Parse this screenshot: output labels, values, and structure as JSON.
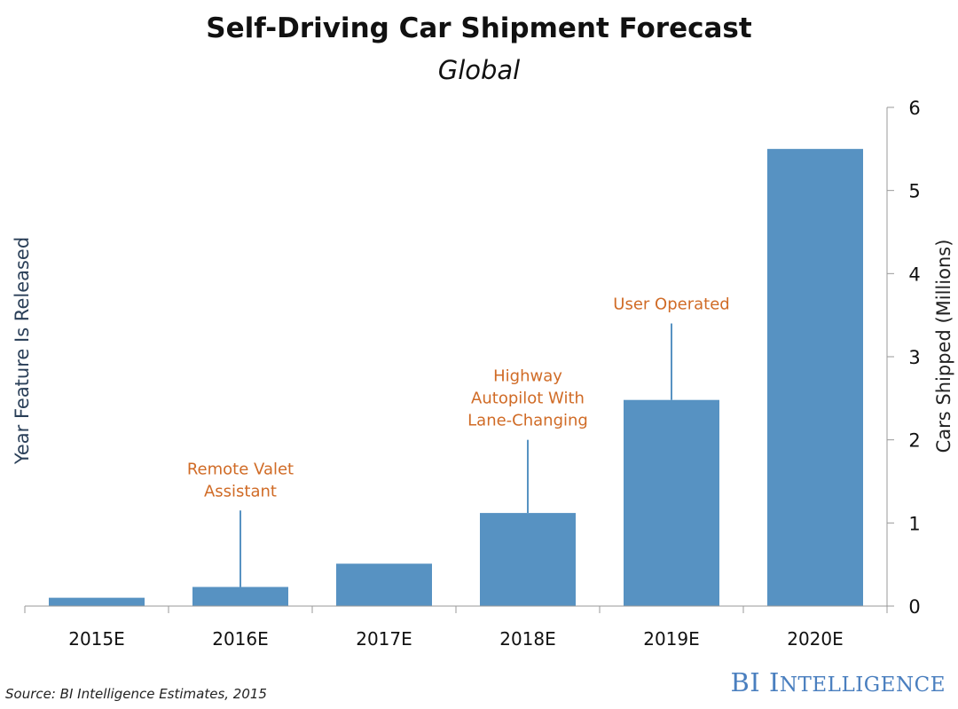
{
  "chart_data": {
    "type": "bar",
    "title": "Self-Driving Car Shipment Forecast",
    "subtitle": "Global",
    "categories": [
      "2015E",
      "2016E",
      "2017E",
      "2018E",
      "2019E",
      "2020E"
    ],
    "values": [
      0.1,
      0.23,
      0.51,
      1.12,
      2.48,
      5.5
    ],
    "xlabel": "Year Feature Is Released",
    "ylabel": "Cars Shipped (Millions)",
    "ylim": [
      0,
      6
    ],
    "yticks": [
      "0",
      "1",
      "2",
      "3",
      "4",
      "5",
      "6"
    ],
    "y_axis_side": "right",
    "grid": false,
    "bar_color": "#5792c2",
    "annotation_color": "#d06b26",
    "annotations": [
      {
        "category": "2016E",
        "lines": [
          "Remote Valet",
          "Assistant"
        ],
        "top": 1.15
      },
      {
        "category": "2018E",
        "lines": [
          "Highway",
          "Autopilot With",
          "Lane-Changing"
        ],
        "top": 2.0
      },
      {
        "category": "2019E",
        "lines": [
          "User Operated"
        ],
        "top": 3.4
      }
    ]
  },
  "footer": {
    "source": "Source: BI Intelligence Estimates, 2015",
    "brand_bi": "BI",
    "brand_i": "I",
    "brand_rest": "NTELLIGENCE"
  }
}
